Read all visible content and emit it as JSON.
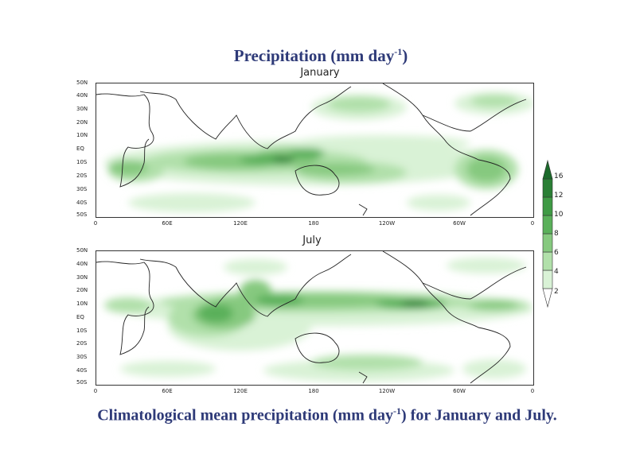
{
  "title": {
    "text": "Precipitation (mm day",
    "sup": "-1",
    "close": ")"
  },
  "caption": {
    "text": "Climatological mean precipitation (mm day",
    "sup": "-1",
    "rest": ") for January and July."
  },
  "panels": [
    {
      "title": "January"
    },
    {
      "title": "July"
    }
  ],
  "lat_labels": [
    "50N",
    "40N",
    "30N",
    "20N",
    "10N",
    "EQ",
    "10S",
    "20S",
    "30S",
    "40S",
    "50S"
  ],
  "lon_labels": [
    "0",
    "60E",
    "120E",
    "180",
    "120W",
    "60W",
    "0"
  ],
  "colorbar": {
    "units": "mm day-1",
    "levels": [
      "2",
      "4",
      "6",
      "8",
      "10",
      "12",
      "16"
    ],
    "colors": [
      "#ffffff",
      "#d9f2d6",
      "#b1e0aa",
      "#86c97f",
      "#5ab05a",
      "#3f9a45",
      "#2a7f35",
      "#1b6a2a"
    ]
  }
}
